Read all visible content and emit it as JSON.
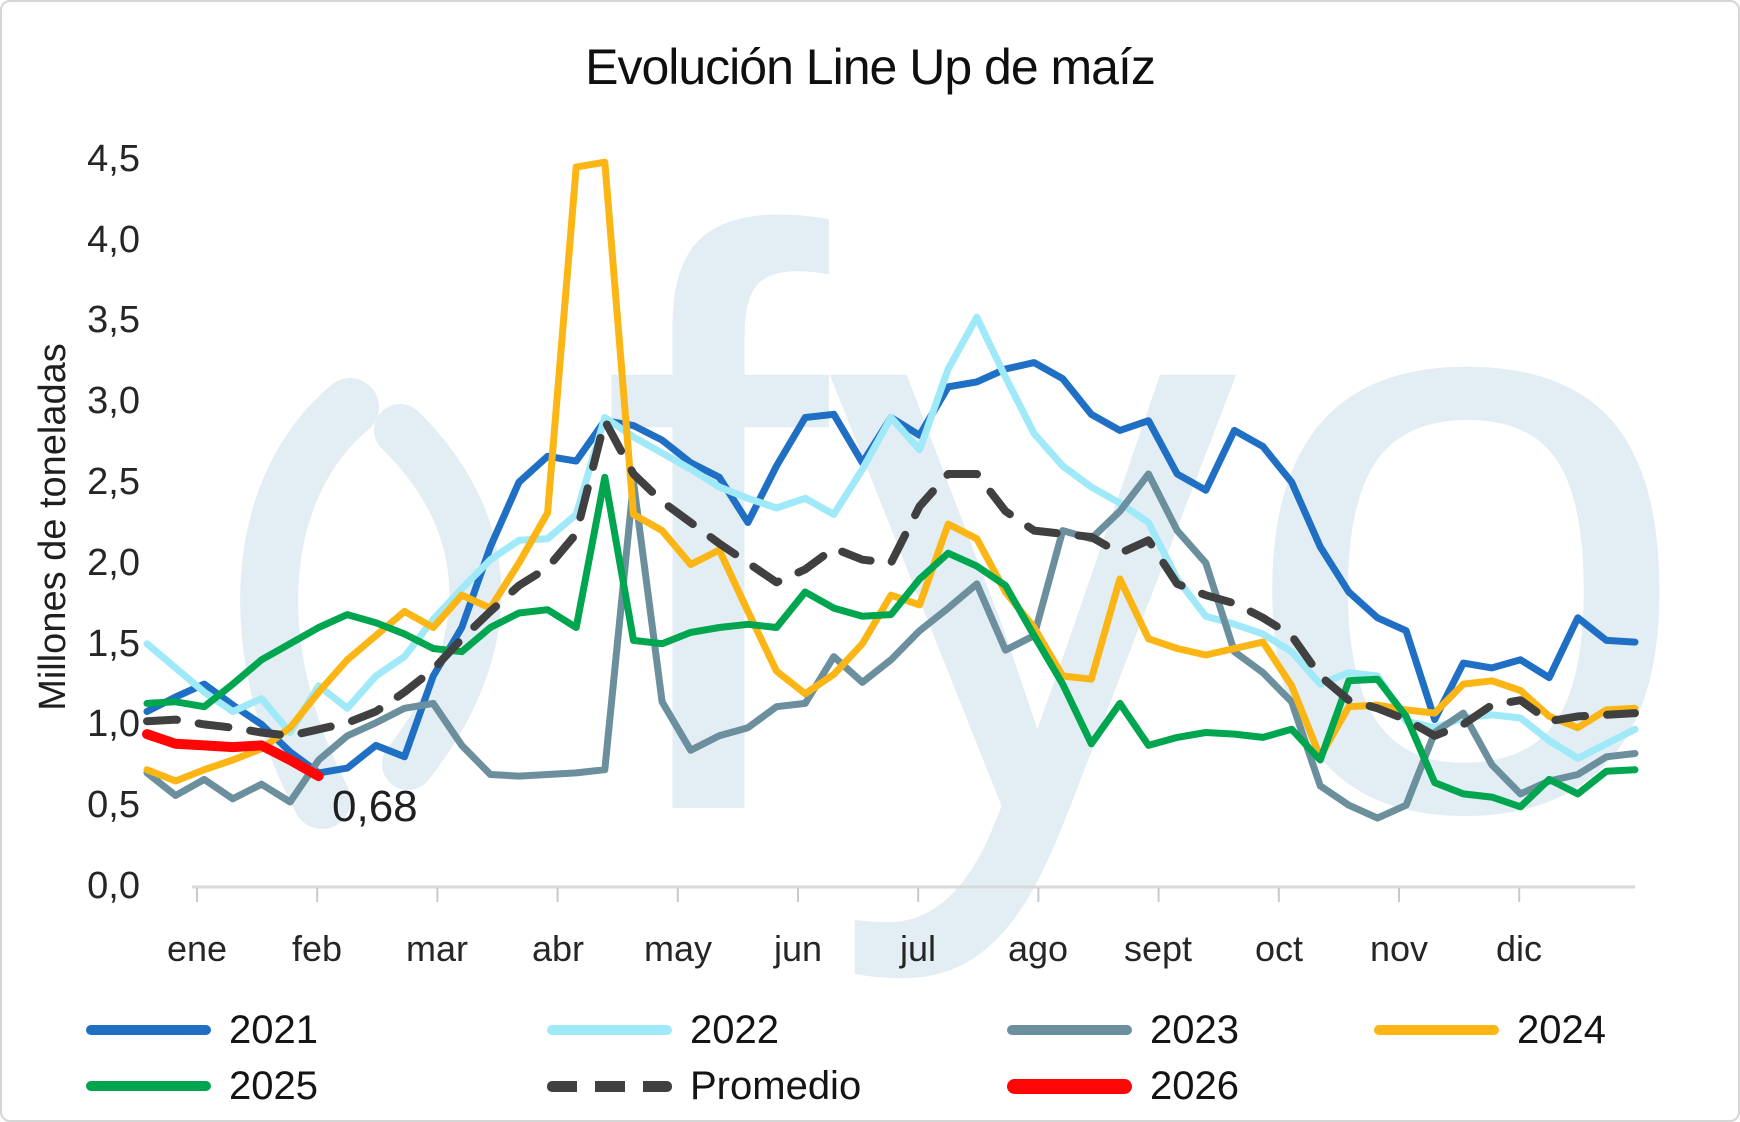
{
  "title": "Evolución Line Up de maíz",
  "watermark": "fyo",
  "y_axis": {
    "label": "Millones de toneladas",
    "ticks": [
      "4,5",
      "4,0",
      "3,5",
      "3,0",
      "2,5",
      "2,0",
      "1,5",
      "1,0",
      "0,5",
      "0,0"
    ]
  },
  "x_axis": {
    "months": [
      "ene",
      "feb",
      "mar",
      "abr",
      "may",
      "jun",
      "jul",
      "ago",
      "sept",
      "oct",
      "nov",
      "dic"
    ]
  },
  "annotation": {
    "text": "0,68",
    "value": 0.68,
    "series": "2026"
  },
  "legend_position": "bottom",
  "chart_data": {
    "type": "line",
    "x_unit": "week",
    "xlabel": "",
    "ylabel": "Millones de toneladas",
    "ylim": [
      0.0,
      4.5
    ],
    "grid": false,
    "series": [
      {
        "name": "2021",
        "color": "#1F6FC4",
        "dashed": false,
        "values": [
          1.08,
          1.17,
          1.25,
          1.12,
          1.0,
          0.83,
          0.7,
          0.73,
          0.87,
          0.8,
          1.3,
          1.6,
          2.1,
          2.5,
          2.66,
          2.63,
          2.88,
          2.85,
          2.76,
          2.62,
          2.53,
          2.25,
          2.6,
          2.9,
          2.92,
          2.62,
          2.9,
          2.79,
          3.09,
          3.12,
          3.2,
          3.24,
          3.14,
          2.92,
          2.82,
          2.88,
          2.55,
          2.45,
          2.82,
          2.72,
          2.5,
          2.1,
          1.82,
          1.66,
          1.58,
          1.03,
          1.38,
          1.35,
          1.4,
          1.29,
          1.66,
          1.52,
          1.51
        ]
      },
      {
        "name": "2022",
        "color": "#9FE9F8",
        "dashed": false,
        "values": [
          1.5,
          1.35,
          1.2,
          1.08,
          1.16,
          0.95,
          1.24,
          1.1,
          1.3,
          1.42,
          1.65,
          1.84,
          2.02,
          2.14,
          2.15,
          2.3,
          2.9,
          2.78,
          2.68,
          2.58,
          2.47,
          2.4,
          2.34,
          2.4,
          2.3,
          2.58,
          2.9,
          2.7,
          3.2,
          3.52,
          3.15,
          2.8,
          2.6,
          2.47,
          2.37,
          2.25,
          1.9,
          1.67,
          1.62,
          1.56,
          1.45,
          1.25,
          1.32,
          1.3,
          1.02,
          0.98,
          1.04,
          1.06,
          1.04,
          0.9,
          0.79,
          0.88,
          0.97
        ]
      },
      {
        "name": "2023",
        "color": "#6C8F9D",
        "dashed": false,
        "values": [
          0.7,
          0.56,
          0.66,
          0.54,
          0.63,
          0.52,
          0.78,
          0.93,
          1.01,
          1.1,
          1.13,
          0.87,
          0.69,
          0.68,
          0.69,
          0.7,
          0.72,
          2.5,
          1.14,
          0.84,
          0.93,
          0.98,
          1.11,
          1.13,
          1.42,
          1.26,
          1.4,
          1.58,
          1.72,
          1.87,
          1.46,
          1.55,
          2.2,
          2.15,
          2.32,
          2.55,
          2.2,
          2.0,
          1.45,
          1.32,
          1.14,
          0.62,
          0.5,
          0.42,
          0.5,
          0.95,
          1.07,
          0.75,
          0.57,
          0.65,
          0.69,
          0.8,
          0.82
        ]
      },
      {
        "name": "2024",
        "color": "#FBB615",
        "dashed": false,
        "values": [
          0.72,
          0.65,
          0.72,
          0.78,
          0.85,
          0.98,
          1.2,
          1.4,
          1.55,
          1.7,
          1.6,
          1.8,
          1.72,
          2.0,
          2.31,
          4.45,
          4.48,
          2.3,
          2.2,
          1.99,
          2.08,
          1.7,
          1.33,
          1.19,
          1.31,
          1.5,
          1.8,
          1.74,
          2.24,
          2.15,
          1.82,
          1.6,
          1.3,
          1.28,
          1.9,
          1.53,
          1.47,
          1.43,
          1.47,
          1.51,
          1.24,
          0.8,
          1.11,
          1.12,
          1.09,
          1.07,
          1.25,
          1.27,
          1.21,
          1.05,
          0.98,
          1.09,
          1.1
        ]
      },
      {
        "name": "2025",
        "color": "#00A64F",
        "dashed": false,
        "values": [
          1.13,
          1.14,
          1.11,
          1.25,
          1.4,
          1.5,
          1.6,
          1.68,
          1.63,
          1.56,
          1.47,
          1.45,
          1.6,
          1.69,
          1.71,
          1.6,
          2.53,
          1.52,
          1.5,
          1.57,
          1.6,
          1.62,
          1.6,
          1.82,
          1.72,
          1.67,
          1.68,
          1.9,
          2.06,
          1.98,
          1.86,
          1.55,
          1.25,
          0.88,
          1.13,
          0.87,
          0.92,
          0.95,
          0.94,
          0.92,
          0.97,
          0.78,
          1.27,
          1.28,
          1.05,
          0.64,
          0.57,
          0.55,
          0.49,
          0.66,
          0.57,
          0.71,
          0.72
        ]
      },
      {
        "name": "Promedio",
        "color": "#404040",
        "dashed": true,
        "values": [
          1.02,
          1.03,
          1.0,
          0.98,
          0.95,
          0.93,
          0.97,
          1.01,
          1.08,
          1.2,
          1.34,
          1.53,
          1.7,
          1.86,
          1.97,
          2.18,
          2.88,
          2.55,
          2.38,
          2.25,
          2.12,
          2.0,
          1.88,
          1.96,
          2.09,
          2.02,
          2.0,
          2.35,
          2.55,
          2.55,
          2.32,
          2.2,
          2.18,
          2.16,
          2.06,
          2.14,
          1.87,
          1.8,
          1.75,
          1.66,
          1.55,
          1.3,
          1.15,
          1.1,
          1.03,
          0.93,
          1.0,
          1.12,
          1.15,
          1.02,
          1.05,
          1.06,
          1.07
        ]
      },
      {
        "name": "2026",
        "color": "#FF0505",
        "dashed": false,
        "values": [
          0.94,
          0.88,
          0.87,
          0.86,
          0.87,
          0.78,
          0.68
        ]
      }
    ]
  }
}
